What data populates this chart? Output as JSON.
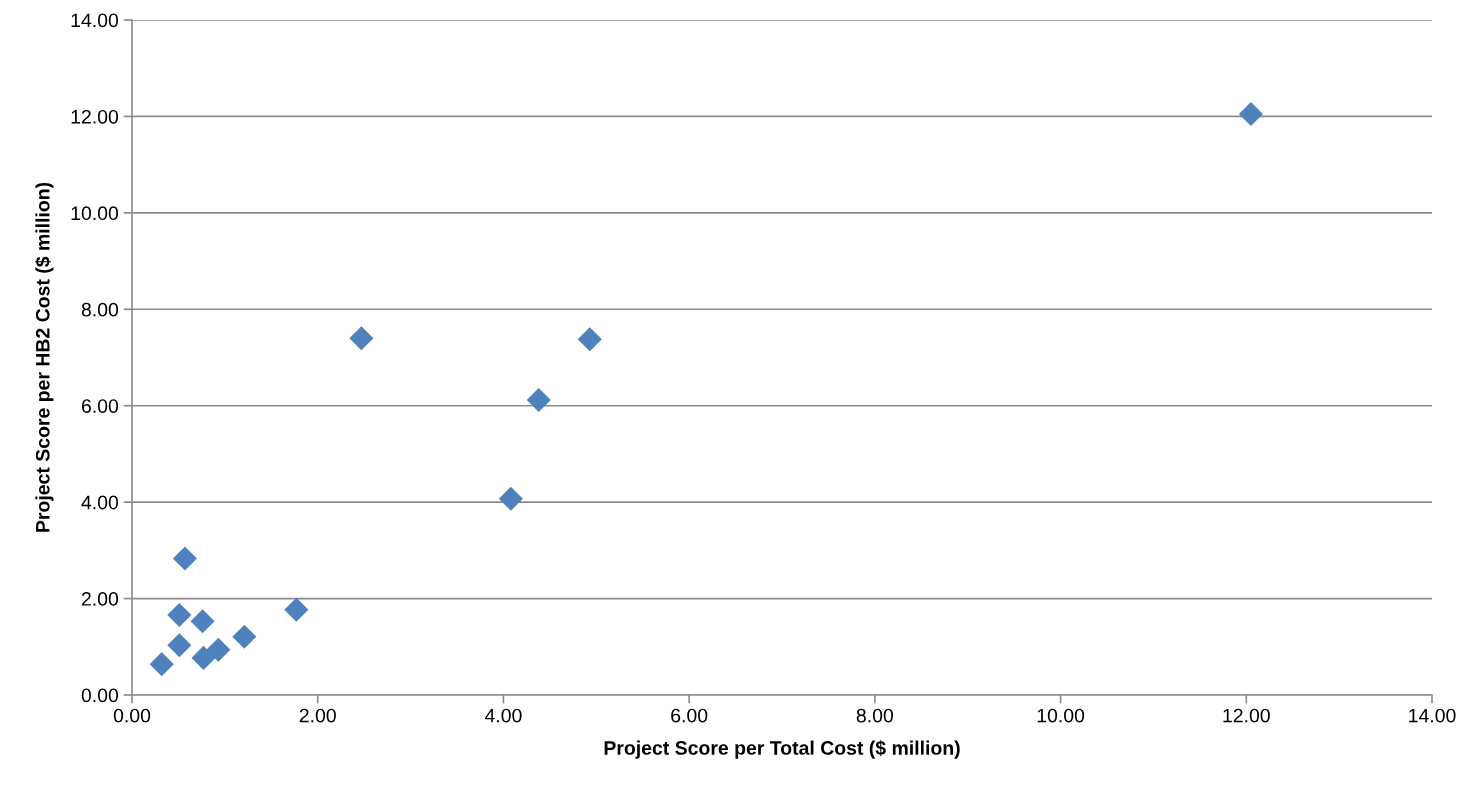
{
  "chart_data": {
    "type": "scatter",
    "xlabel": "Project Score per Total Cost ($ million)",
    "ylabel": "Project Score per HB2 Cost ($ million)",
    "series": [
      {
        "color": "#4f81bd",
        "x": [
          0.32,
          0.51,
          0.51,
          0.57,
          0.76,
          0.77,
          0.93,
          1.21,
          1.77,
          2.47,
          4.08,
          4.38,
          4.93,
          12.05
        ],
        "values": [
          0.64,
          1.03,
          1.66,
          2.83,
          1.53,
          0.77,
          0.94,
          1.21,
          1.77,
          7.4,
          4.07,
          6.12,
          7.38,
          12.05
        ]
      }
    ],
    "xlim": [
      0,
      14
    ],
    "ylim": [
      0,
      14
    ],
    "xticks": [
      {
        "value": 0,
        "label": "0.00"
      },
      {
        "value": 2,
        "label": "2.00"
      },
      {
        "value": 4,
        "label": "4.00"
      },
      {
        "value": 6,
        "label": "6.00"
      },
      {
        "value": 8,
        "label": "8.00"
      },
      {
        "value": 10,
        "label": "10.00"
      },
      {
        "value": 12,
        "label": "12.00"
      },
      {
        "value": 14,
        "label": "14.00"
      }
    ],
    "yticks": [
      {
        "value": 0,
        "label": "0.00"
      },
      {
        "value": 2,
        "label": "2.00"
      },
      {
        "value": 4,
        "label": "4.00"
      },
      {
        "value": 6,
        "label": "6.00"
      },
      {
        "value": 8,
        "label": "8.00"
      },
      {
        "value": 10,
        "label": "10.00"
      },
      {
        "value": 12,
        "label": "12.00"
      },
      {
        "value": 14,
        "label": "14.00"
      }
    ],
    "grid": "y",
    "marker": "diamond",
    "legend": false
  }
}
